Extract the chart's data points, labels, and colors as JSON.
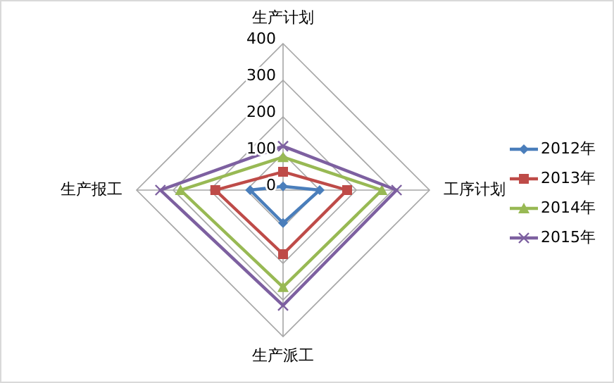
{
  "chart_data": {
    "type": "radar",
    "categories": [
      "生产计划",
      "工序计划",
      "生产派工",
      "生产报工"
    ],
    "ylim": [
      0,
      400
    ],
    "yticks": [
      0,
      100,
      200,
      300,
      400
    ],
    "grid": true,
    "legend": "right",
    "line_style": "solid",
    "series": [
      {
        "name": "2012年",
        "color": "#4a7ebb",
        "marker": "diamond",
        "values": [
          10,
          100,
          90,
          90
        ]
      },
      {
        "name": "2013年",
        "color": "#be4b48",
        "marker": "square",
        "values": [
          50,
          175,
          175,
          185
        ]
      },
      {
        "name": "2014年",
        "color": "#98b954",
        "marker": "triangle",
        "values": [
          90,
          270,
          265,
          280
        ]
      },
      {
        "name": "2015年",
        "color": "#7d60a0",
        "marker": "cross",
        "values": [
          120,
          310,
          315,
          335
        ]
      }
    ]
  }
}
